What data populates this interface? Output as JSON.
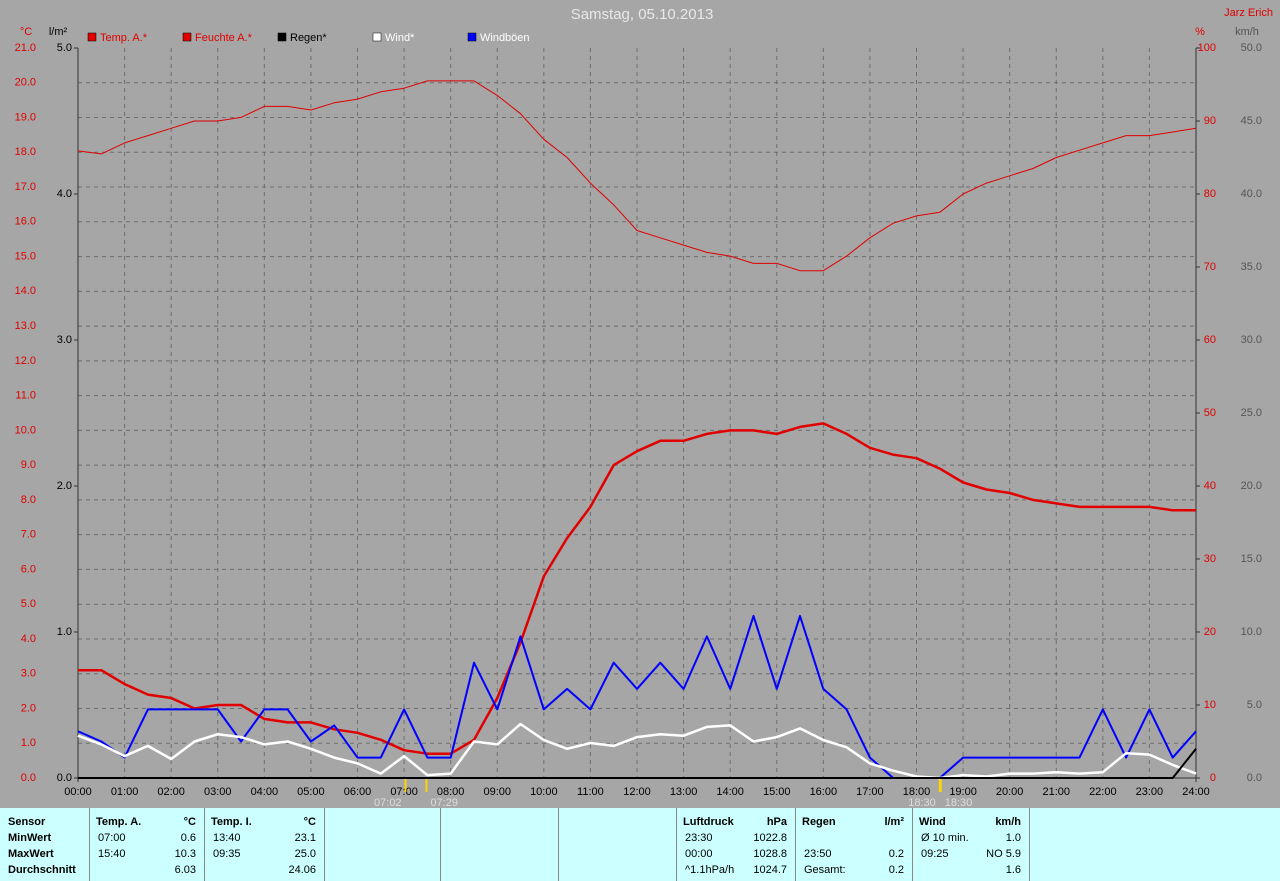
{
  "chart_data": {
    "type": "line",
    "title": "Samstag, 05.10.2013",
    "author": "Jarz Erich",
    "ylabel": "°C",
    "y2label": "%",
    "y3label": "l/m²",
    "y4label": "km/h",
    "xlim": [
      0,
      24
    ],
    "xticks": [
      {
        "value": 0,
        "label": "00:00"
      },
      {
        "value": 1,
        "label": "01:00"
      },
      {
        "value": 2,
        "label": "02:00"
      },
      {
        "value": 3,
        "label": "03:00"
      },
      {
        "value": 4,
        "label": "04:00"
      },
      {
        "value": 5,
        "label": "05:00"
      },
      {
        "value": 6,
        "label": "06:00"
      },
      {
        "value": 7,
        "label": "07:00"
      },
      {
        "value": 8,
        "label": "08:00"
      },
      {
        "value": 9,
        "label": "09:00"
      },
      {
        "value": 10,
        "label": "10:00"
      },
      {
        "value": 11,
        "label": "11:00"
      },
      {
        "value": 12,
        "label": "12:00"
      },
      {
        "value": 13,
        "label": "13:00"
      },
      {
        "value": 14,
        "label": "14:00"
      },
      {
        "value": 15,
        "label": "15:00"
      },
      {
        "value": 16,
        "label": "16:00"
      },
      {
        "value": 17,
        "label": "17:00"
      },
      {
        "value": 18,
        "label": "18:00"
      },
      {
        "value": 19,
        "label": "19:00"
      },
      {
        "value": 20,
        "label": "20:00"
      },
      {
        "value": 21,
        "label": "21:00"
      },
      {
        "value": 22,
        "label": "22:00"
      },
      {
        "value": 23,
        "label": "23:00"
      },
      {
        "value": 24,
        "label": "24:00"
      }
    ],
    "ylim": [
      0,
      21
    ],
    "yticks": [
      {
        "value": 0,
        "label": "0.0"
      },
      {
        "value": 1,
        "label": "1.0"
      },
      {
        "value": 2,
        "label": "2.0"
      },
      {
        "value": 3,
        "label": "3.0"
      },
      {
        "value": 4,
        "label": "4.0"
      },
      {
        "value": 5,
        "label": "5.0"
      },
      {
        "value": 6,
        "label": "6.0"
      },
      {
        "value": 7,
        "label": "7.0"
      },
      {
        "value": 8,
        "label": "8.0"
      },
      {
        "value": 9,
        "label": "9.0"
      },
      {
        "value": 10,
        "label": "10.0"
      },
      {
        "value": 11,
        "label": "11.0"
      },
      {
        "value": 12,
        "label": "12.0"
      },
      {
        "value": 13,
        "label": "13.0"
      },
      {
        "value": 14,
        "label": "14.0"
      },
      {
        "value": 15,
        "label": "15.0"
      },
      {
        "value": 16,
        "label": "16.0"
      },
      {
        "value": 17,
        "label": "17.0"
      },
      {
        "value": 18,
        "label": "18.0"
      },
      {
        "value": 19,
        "label": "19.0"
      },
      {
        "value": 20,
        "label": "20.0"
      },
      {
        "value": 21,
        "label": "21.0"
      }
    ],
    "y2lim": [
      0,
      100
    ],
    "y2ticks": [
      0,
      10,
      20,
      30,
      40,
      50,
      60,
      70,
      80,
      90,
      100
    ],
    "y3lim": [
      0,
      5
    ],
    "y3ticks": [
      {
        "value": 0,
        "label": "0.0"
      },
      {
        "value": 1,
        "label": "1.0"
      },
      {
        "value": 2,
        "label": "2.0"
      },
      {
        "value": 3,
        "label": "3.0"
      },
      {
        "value": 4,
        "label": "4.0"
      },
      {
        "value": 5,
        "label": "5.0"
      }
    ],
    "y4lim": [
      0,
      50
    ],
    "y4ticks": [
      {
        "value": 0,
        "label": "0.0"
      },
      {
        "value": 5,
        "label": "5.0"
      },
      {
        "value": 10,
        "label": "10.0"
      },
      {
        "value": 15,
        "label": "15.0"
      },
      {
        "value": 20,
        "label": "20.0"
      },
      {
        "value": 25,
        "label": "25.0"
      },
      {
        "value": 30,
        "label": "30.0"
      },
      {
        "value": 35,
        "label": "35.0"
      },
      {
        "value": 40,
        "label": "40.0"
      },
      {
        "value": 45,
        "label": "45.0"
      },
      {
        "value": 50,
        "label": "50.0"
      }
    ],
    "grid": true,
    "x": [
      0,
      0.5,
      1,
      1.5,
      2,
      2.5,
      3,
      3.5,
      4,
      4.5,
      5,
      5.5,
      6,
      6.5,
      7,
      7.5,
      8,
      8.5,
      9,
      9.5,
      10,
      10.5,
      11,
      11.5,
      12,
      12.5,
      13,
      13.5,
      14,
      14.5,
      15,
      15.5,
      16,
      16.5,
      17,
      17.5,
      18,
      18.5,
      19,
      19.5,
      20,
      20.5,
      21,
      21.5,
      22,
      22.5,
      23,
      23.5,
      24
    ],
    "series": [
      {
        "name": "Temp. A.*",
        "color": "#e00000",
        "axis": "y",
        "values": [
          3.1,
          3.1,
          2.7,
          2.4,
          2.3,
          2.0,
          2.1,
          2.1,
          1.7,
          1.6,
          1.6,
          1.4,
          1.3,
          1.1,
          0.8,
          0.7,
          0.7,
          1.1,
          2.3,
          3.9,
          5.8,
          6.9,
          7.8,
          9.0,
          9.4,
          9.7,
          9.7,
          9.9,
          10.0,
          10.0,
          9.9,
          10.1,
          10.2,
          9.9,
          9.5,
          9.3,
          9.2,
          8.9,
          8.5,
          8.3,
          8.2,
          8.0,
          7.9,
          7.8,
          7.8,
          7.8,
          7.8,
          7.7,
          7.7
        ]
      },
      {
        "name": "Feuchte A.*",
        "color": "#e00000",
        "axis": "y2",
        "values": [
          85.9,
          85.5,
          87,
          88,
          89,
          90,
          90,
          90.5,
          92,
          92,
          91.5,
          92.5,
          93,
          94,
          94.5,
          95.5,
          95.5,
          95.5,
          93.5,
          91,
          87.5,
          85,
          81.5,
          78.5,
          75,
          74,
          73,
          72,
          71.5,
          70.5,
          70.5,
          69.5,
          69.5,
          71.5,
          74,
          76,
          77,
          77.5,
          80,
          81.5,
          82.5,
          83.5,
          85,
          86,
          87,
          88,
          88,
          88.5,
          89
        ]
      },
      {
        "name": "Regen*",
        "color": "#000000",
        "axis": "y3",
        "values": [
          0,
          0,
          0,
          0,
          0,
          0,
          0,
          0,
          0,
          0,
          0,
          0,
          0,
          0,
          0,
          0,
          0,
          0,
          0,
          0,
          0,
          0,
          0,
          0,
          0,
          0,
          0,
          0,
          0,
          0,
          0,
          0,
          0,
          0,
          0,
          0,
          0,
          0,
          0,
          0,
          0,
          0,
          0,
          0,
          0,
          0,
          0,
          0,
          0.2
        ]
      },
      {
        "name": "Wind*",
        "color": "#ffffff",
        "axis": "y4",
        "values": [
          2.9,
          2.3,
          1.5,
          2.2,
          1.3,
          2.5,
          3.0,
          2.8,
          2.3,
          2.5,
          2.0,
          1.4,
          1.0,
          0.3,
          1.5,
          0.2,
          0.3,
          2.5,
          2.3,
          3.7,
          2.6,
          2.0,
          2.4,
          2.2,
          2.8,
          3.0,
          2.9,
          3.5,
          3.6,
          2.5,
          2.8,
          3.4,
          2.6,
          2.1,
          1.0,
          0.5,
          0.1,
          0,
          0.2,
          0.1,
          0.3,
          0.3,
          0.4,
          0.3,
          0.4,
          1.7,
          1.6,
          0.9,
          0.3
        ]
      },
      {
        "name": "Windböen",
        "color": "#0000ff",
        "axis": "y4",
        "values": [
          3.2,
          2.5,
          1.4,
          4.7,
          4.7,
          4.7,
          4.7,
          2.5,
          4.7,
          4.7,
          2.5,
          3.6,
          1.4,
          1.4,
          4.7,
          1.4,
          1.4,
          7.9,
          4.7,
          9.7,
          4.7,
          6.1,
          4.7,
          7.9,
          6.1,
          7.9,
          6.1,
          9.7,
          6.1,
          11.1,
          6.1,
          11.1,
          6.1,
          4.7,
          1.4,
          0,
          0,
          0,
          1.4,
          1.4,
          1.4,
          1.4,
          1.4,
          1.4,
          4.7,
          1.4,
          4.7,
          1.4,
          3.2
        ]
      }
    ],
    "annotations": [
      {
        "x": 7.03,
        "label": "07:02"
      },
      {
        "x": 7.48,
        "label": "07:29"
      },
      {
        "x": 18.5,
        "label": "18:30"
      },
      {
        "x": 18.52,
        "label": "18:30"
      }
    ]
  },
  "stats": {
    "labels": [
      "Sensor",
      "MinWert",
      "MaxWert",
      "Durchschnitt"
    ],
    "blocks": [
      {
        "header": [
          "Temp. A.",
          "°C"
        ],
        "rows": [
          [
            "07:00",
            "0.6"
          ],
          [
            "15:40",
            "10.3"
          ],
          [
            null,
            "6.03"
          ]
        ]
      },
      {
        "header": [
          "Temp. I.",
          "°C"
        ],
        "rows": [
          [
            "13:40",
            "23.1"
          ],
          [
            "09:35",
            "25.0"
          ],
          [
            null,
            "24.06"
          ]
        ]
      },
      {
        "header": [
          "Luftdruck",
          "hPa"
        ],
        "rows": [
          [
            "23:30",
            "1022.8"
          ],
          [
            "00:00",
            "1028.8"
          ],
          [
            "^1.1hPa/h",
            "1024.7"
          ]
        ]
      },
      {
        "header": [
          "Regen",
          "l/m²"
        ],
        "rows": [
          [
            null,
            null
          ],
          [
            "23:50",
            "0.2"
          ],
          [
            "Gesamt:",
            "0.2"
          ]
        ]
      },
      {
        "header": [
          "Wind",
          "km/h"
        ],
        "rows": [
          [
            "Ø 10 min.",
            "1.0"
          ],
          [
            "09:25",
            "NO 5.9"
          ],
          [
            null,
            "1.6"
          ]
        ]
      }
    ]
  }
}
